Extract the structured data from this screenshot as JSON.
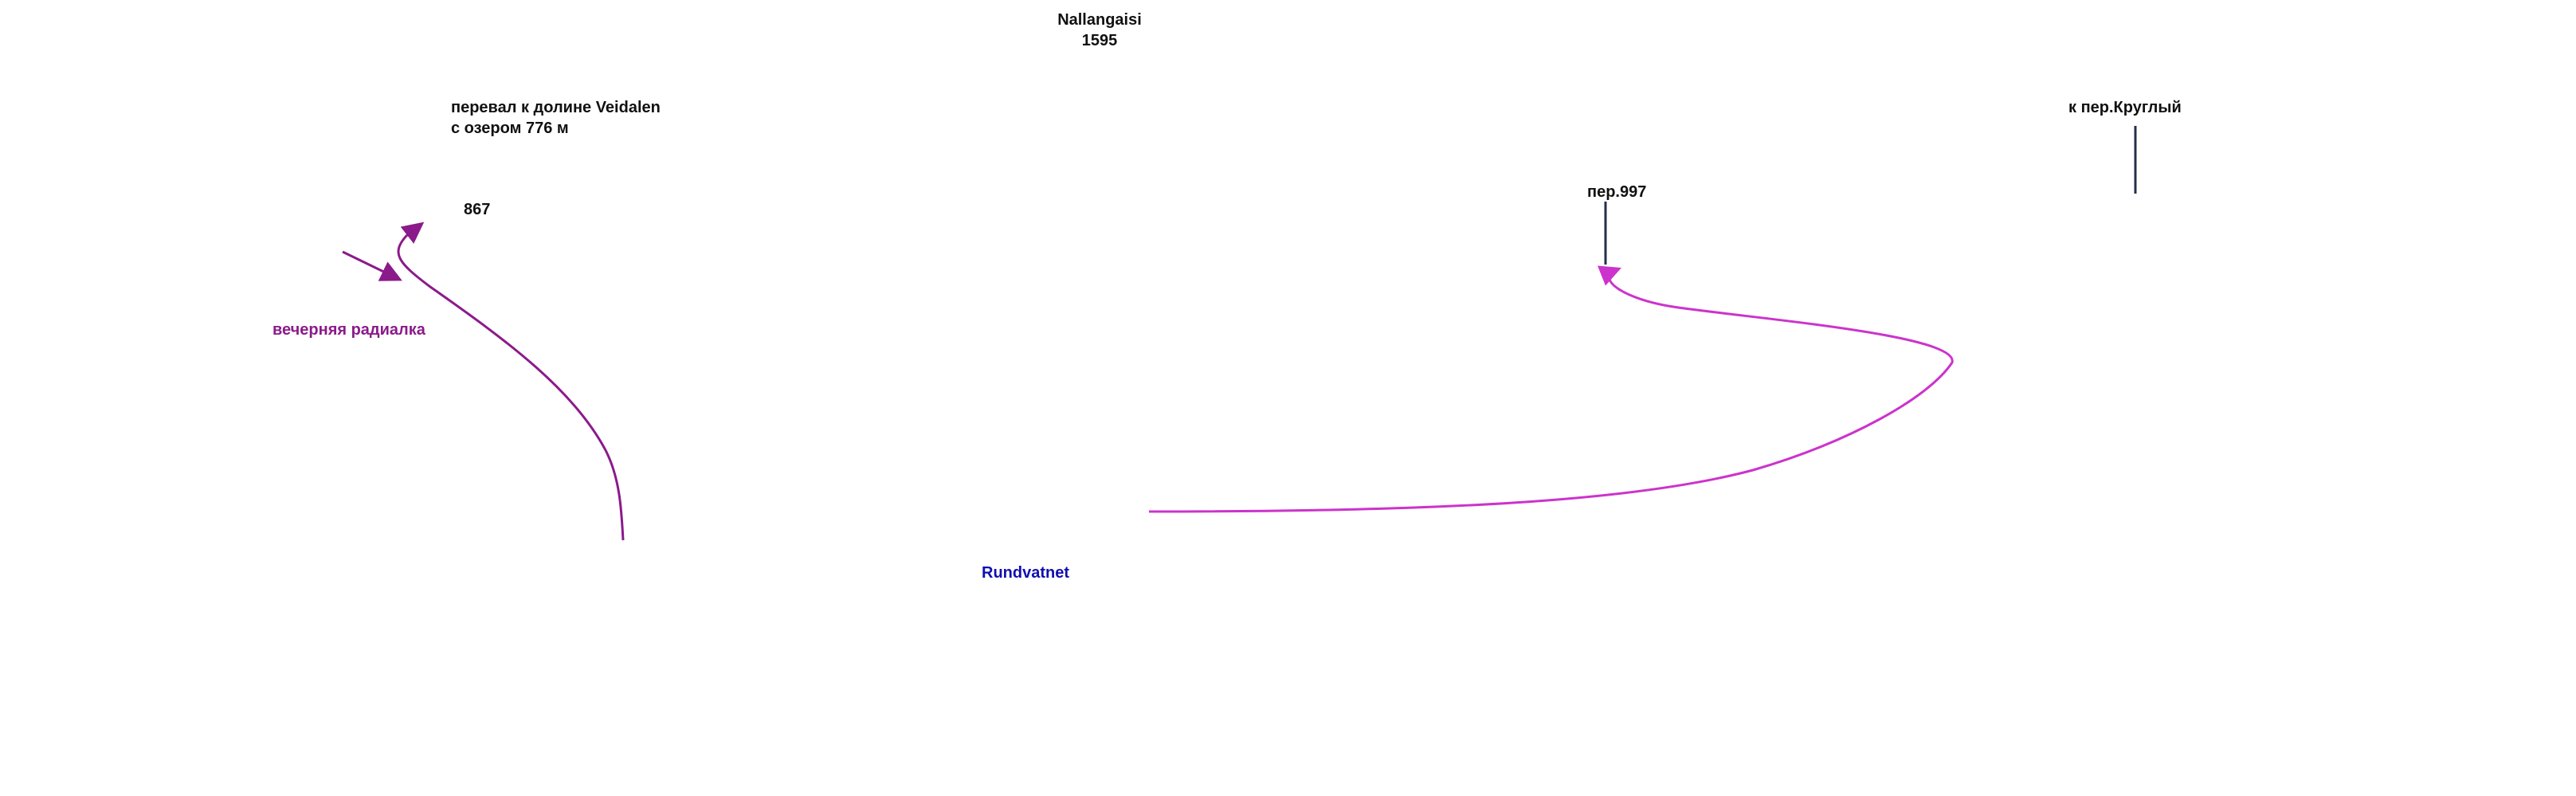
{
  "labels": {
    "peak_name": "Nallangaisi",
    "peak_elevation": "1595",
    "pass_veidalen_line1": "перевал к долине Veidalen",
    "pass_veidalen_line2": "с озером 776 м",
    "point_867": "867",
    "evening_radial": "вечерняя радиалка",
    "pass_997": "пер.997",
    "to_pass_krugly": "к пер.Круглый",
    "lake_rundvatnet": "Rundvatnet"
  },
  "colors": {
    "text": "#111111",
    "route_left": "#8b1a8b",
    "route_right": "#cc33cc",
    "water_label": "#1010b0",
    "marker_line": "#22304a",
    "radial_label": "#8b1a8b"
  }
}
